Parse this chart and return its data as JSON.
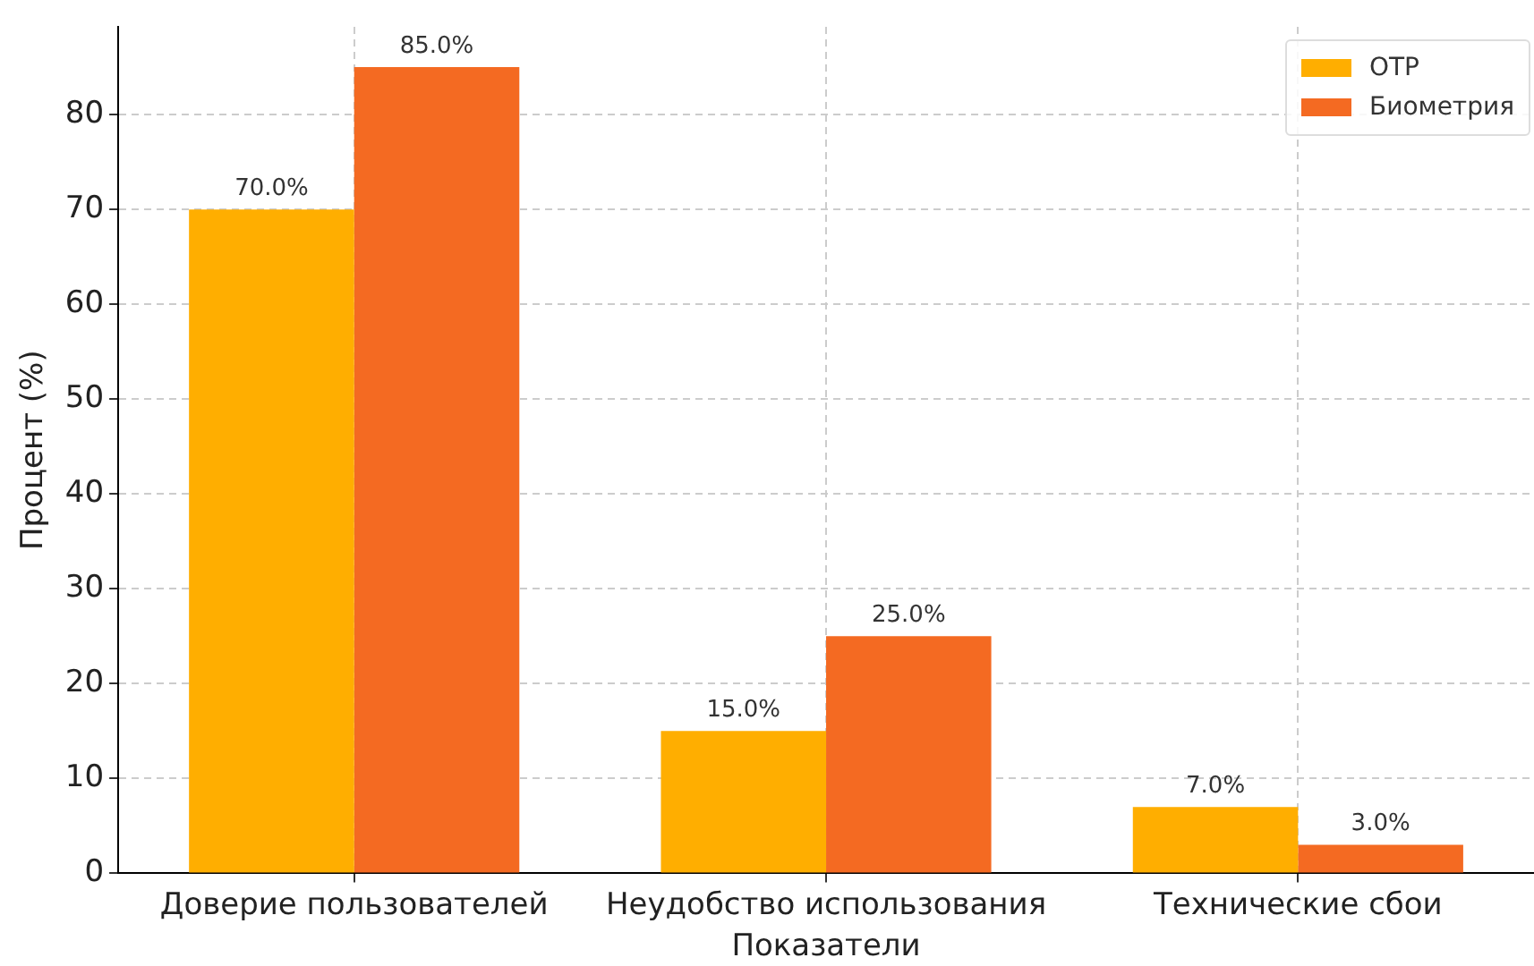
{
  "chart_data": {
    "type": "bar",
    "xlabel": "Показатели",
    "ylabel": "Процент (%)",
    "categories": [
      "Доверие пользователей",
      "Неудобство использования",
      "Технические сбои"
    ],
    "series": [
      {
        "name": "OTP",
        "color": "#ffae00",
        "values": [
          70,
          15,
          7
        ],
        "value_labels": [
          "70.0%",
          "15.0%",
          "7.0%"
        ]
      },
      {
        "name": "Биометрия",
        "color": "#f46a22",
        "values": [
          85,
          25,
          3
        ],
        "value_labels": [
          "85.0%",
          "25.0%",
          "3.0%"
        ]
      }
    ],
    "ylim": [
      0,
      89.25
    ],
    "yticks": [
      0,
      10,
      20,
      30,
      40,
      50,
      60,
      70,
      80
    ],
    "grid": true,
    "legend": "top right"
  }
}
